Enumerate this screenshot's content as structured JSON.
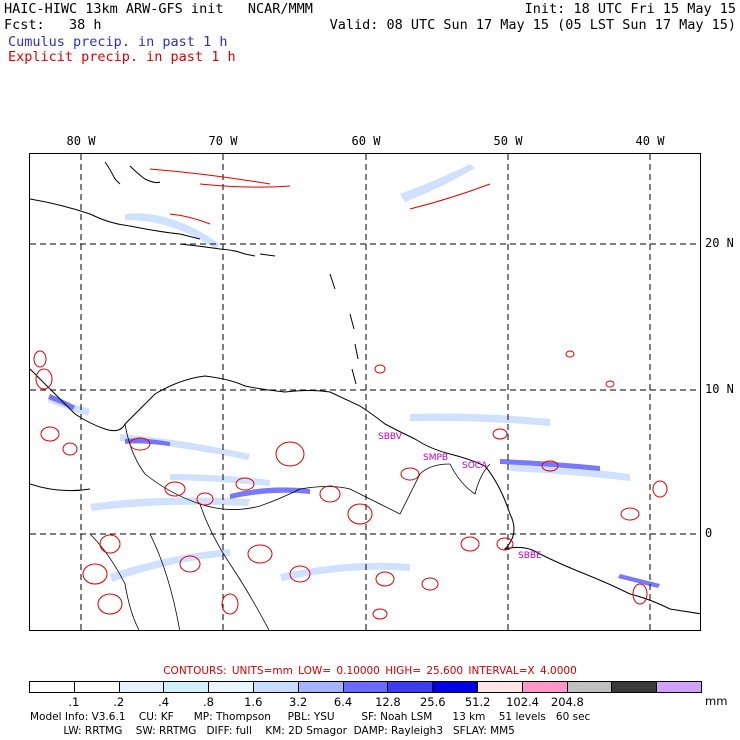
{
  "header": {
    "left_line1": "HAIC-HIWC 13km ARW-GFS init   NCAR/MMM",
    "left_line2": "Fcst:   38 h",
    "right_line1": "Init: 18 UTC Fri 15 May 15",
    "right_line2": "Valid: 08 UTC Sun 17 May 15 (05 LST Sun 17 May 15)"
  },
  "legend": {
    "cumulus": "Cumulus precip. in past 1 h",
    "explicit": "Explicit precip. in past 1 h",
    "cumulus_color": "#3030c0",
    "explicit_color": "#e00000"
  },
  "map": {
    "lon_labels": [
      "80 W",
      "70 W",
      "60 W",
      "50 W",
      "40 W"
    ],
    "lat_labels": [
      "20 N",
      "10 N",
      "0"
    ],
    "station_labels": [
      "SBBV",
      "SMPB",
      "SOCA",
      "SBBE"
    ],
    "station_color": "#c000c0"
  },
  "contours": {
    "text": "CONTOURS:  UNITS=mm  LOW= 0.10000     HIGH=  25.600     INTERVAL=X  4.0000"
  },
  "colorbar": {
    "colors": [
      "#ffffff",
      "#ffffff",
      "#e6f2ff",
      "#d0f0fa",
      "#eaf6ff",
      "#c8dcff",
      "#a4b4ff",
      "#6a6aff",
      "#3c3cf0",
      "#0000e6",
      "#ffe4e8",
      "#ff96c8",
      "#c0c0c0",
      "#3a3a3a",
      "#d2a0ff"
    ],
    "ticks": [
      ".1",
      ".2",
      ".4",
      ".8",
      "1.6",
      "3.2",
      "6.4",
      "12.8",
      "25.6",
      "51.2",
      "102.4",
      "204.8"
    ],
    "units": "mm"
  },
  "model_info": {
    "line1": "Model Info: V3.6.1    CU: KF      MP: Thompson     PBL: YSU        SF: Noah LSM      13 km    51 levels   60 sec",
    "line2": "          LW: RRTMG    SW: RRTMG   DIFF: full    KM: 2D Smagor  DAMP: Rayleigh3   SFLAY: MM5"
  }
}
